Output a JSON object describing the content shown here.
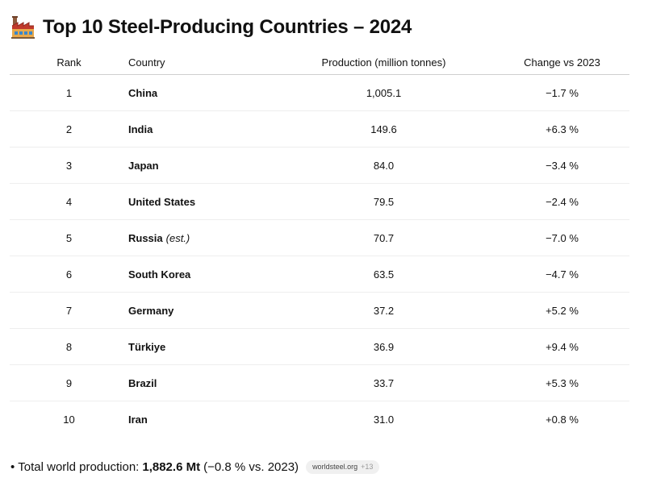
{
  "title": "Top 10 Steel-Producing Countries – 2024",
  "title_icon": "factory-icon",
  "table": {
    "headers": {
      "rank": "Rank",
      "country": "Country",
      "production": "Production (million tonnes)",
      "change": "Change vs 2023"
    },
    "rows": [
      {
        "rank": "1",
        "country": "China",
        "note": "",
        "production": "1,005.1",
        "change": "−1.7 %"
      },
      {
        "rank": "2",
        "country": "India",
        "note": "",
        "production": "149.6",
        "change": "+6.3 %"
      },
      {
        "rank": "3",
        "country": "Japan",
        "note": "",
        "production": "84.0",
        "change": "−3.4 %"
      },
      {
        "rank": "4",
        "country": "United States",
        "note": "",
        "production": "79.5",
        "change": "−2.4 %"
      },
      {
        "rank": "5",
        "country": "Russia",
        "note": "(est.)",
        "production": "70.7",
        "change": "−7.0 %"
      },
      {
        "rank": "6",
        "country": "South Korea",
        "note": "",
        "production": "63.5",
        "change": "−4.7 %"
      },
      {
        "rank": "7",
        "country": "Germany",
        "note": "",
        "production": "37.2",
        "change": "+5.2 %"
      },
      {
        "rank": "8",
        "country": "Türkiye",
        "note": "",
        "production": "36.9",
        "change": "+9.4 %"
      },
      {
        "rank": "9",
        "country": "Brazil",
        "note": "",
        "production": "33.7",
        "change": "+5.3 %"
      },
      {
        "rank": "10",
        "country": "Iran",
        "note": "",
        "production": "31.0",
        "change": "+0.8 %"
      }
    ]
  },
  "footer": {
    "bullet": "•",
    "label": "Total world production:",
    "total_value": "1,882.6 Mt",
    "comparison": "(−0.8 % vs. 2023)",
    "source_label": "worldsteel.org",
    "source_count": "+13"
  }
}
